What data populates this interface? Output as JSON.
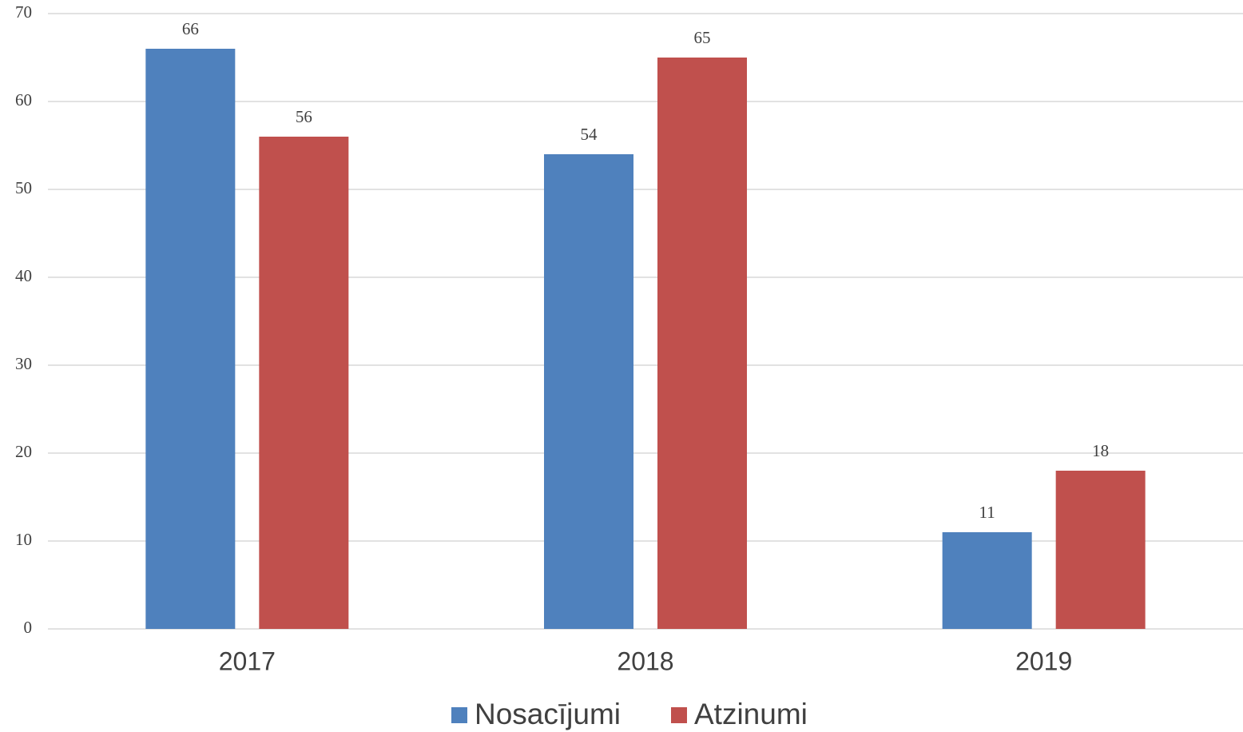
{
  "chart_data": {
    "type": "bar",
    "categories": [
      "2017",
      "2018",
      "2019"
    ],
    "series": [
      {
        "name": "Nosacījumi",
        "color": "#4f81bd",
        "values": [
          66,
          54,
          11
        ]
      },
      {
        "name": "Atzinumi",
        "color": "#c0504d",
        "values": [
          56,
          65,
          18
        ]
      }
    ],
    "ylim": [
      0,
      70
    ],
    "yticks": [
      0,
      10,
      20,
      30,
      40,
      50,
      60,
      70
    ],
    "grid": true,
    "legend": "bottom",
    "data_labels": true
  }
}
